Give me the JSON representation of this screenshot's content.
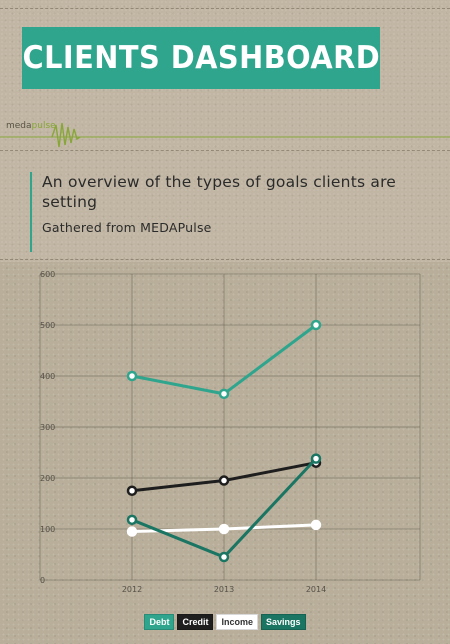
{
  "header": {
    "title": "CLIENTS DASHBOARD",
    "logo_part1": "meda",
    "logo_part2": "pulse"
  },
  "description": {
    "main": "An overview of the types of goals clients are setting",
    "source": "Gathered from MEDAPulse"
  },
  "colors": {
    "accent": "#2fa58d",
    "debt": "#2fa58d",
    "credit": "#1e1e1e",
    "income": "#ffffff",
    "savings": "#1a7563"
  },
  "chart_data": {
    "type": "line",
    "title": "",
    "xlabel": "",
    "ylabel": "",
    "x": [
      "2012",
      "2013",
      "2014"
    ],
    "ylim": [
      0,
      600
    ],
    "yticks": [
      "0",
      "100",
      "200",
      "300",
      "400",
      "500",
      "600"
    ],
    "grid": true,
    "legend_position": "bottom-center",
    "series": [
      {
        "name": "Debt",
        "values": [
          400,
          365,
          500
        ],
        "color": "#2fa58d",
        "legend_text": "#ffffff"
      },
      {
        "name": "Credit",
        "values": [
          175,
          195,
          230
        ],
        "color": "#1e1e1e",
        "legend_text": "#ffffff"
      },
      {
        "name": "Income",
        "values": [
          95,
          100,
          108
        ],
        "color": "#ffffff",
        "legend_text": "#333333"
      },
      {
        "name": "Savings",
        "values": [
          118,
          45,
          238
        ],
        "color": "#1a7563",
        "legend_text": "#ffffff"
      }
    ]
  }
}
